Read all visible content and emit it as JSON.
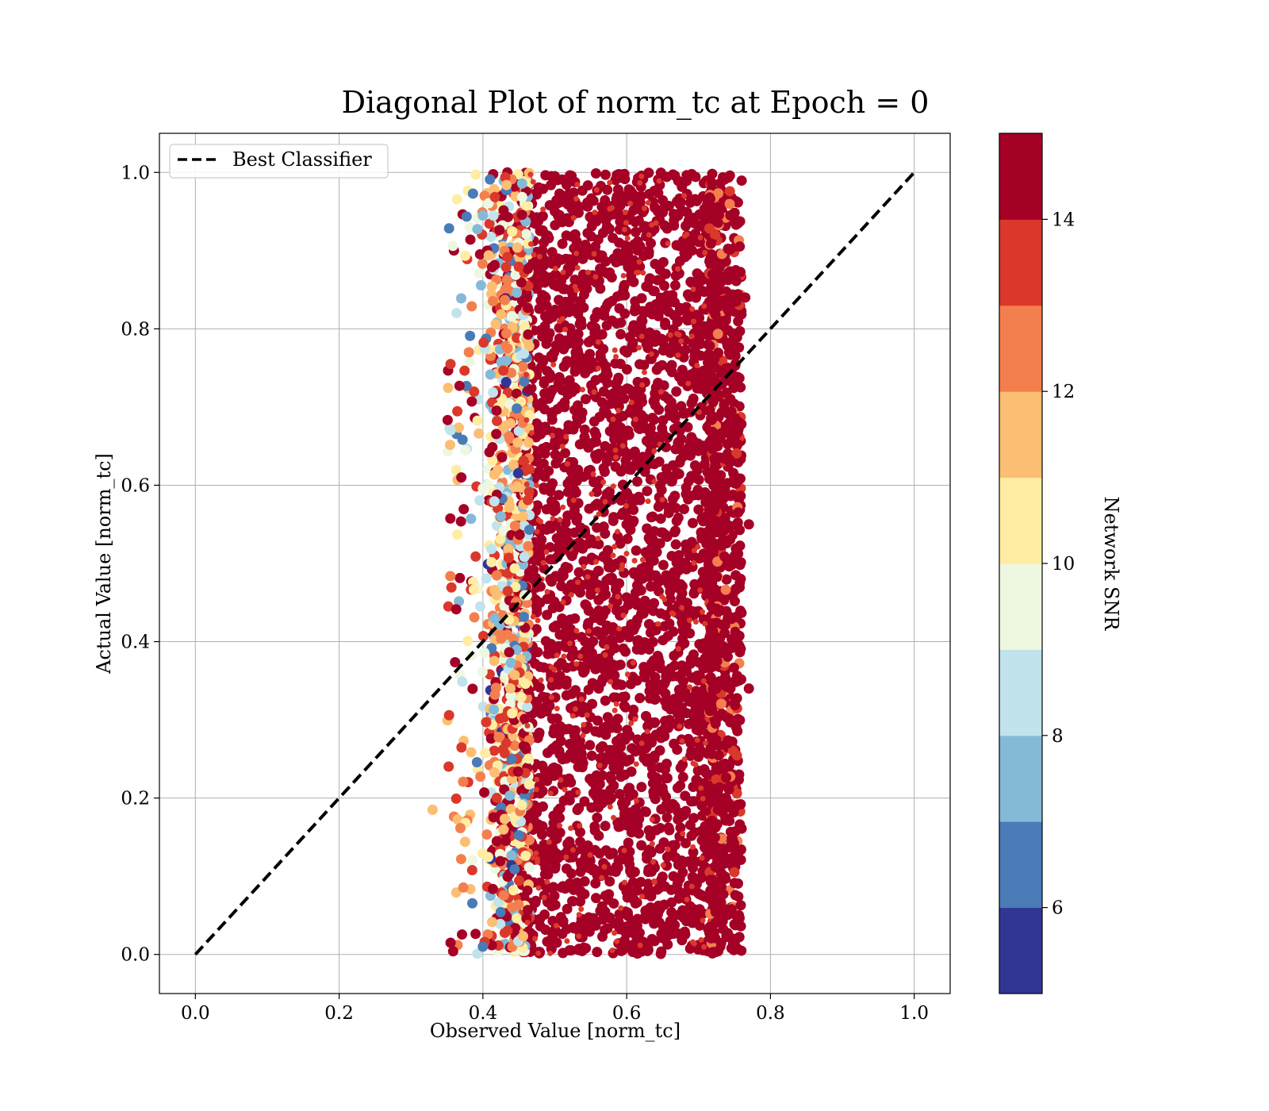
{
  "chart_data": {
    "type": "scatter",
    "title": "Diagonal Plot of norm_tc at Epoch = 0",
    "xlabel": "Observed Value [norm_tc]",
    "ylabel": "Actual Value [norm_tc]",
    "xlim": [
      -0.05,
      1.05
    ],
    "ylim": [
      -0.05,
      1.05
    ],
    "xticks": [
      "0.0",
      "0.2",
      "0.4",
      "0.6",
      "0.8",
      "1.0"
    ],
    "yticks": [
      "0.0",
      "0.2",
      "0.4",
      "0.6",
      "0.8",
      "1.0"
    ],
    "grid": true,
    "legend": {
      "placement": "upper-left",
      "entries": [
        "Best Classifier"
      ]
    },
    "reference_line": {
      "name": "Best Classifier",
      "x": [
        0.0,
        1.0
      ],
      "y": [
        0.0,
        1.0
      ],
      "style": "dashed",
      "color": "#000000"
    },
    "scatter": {
      "x_core_range": [
        0.45,
        0.72
      ],
      "x_full_range": [
        0.33,
        0.77
      ],
      "y_range": [
        0.0,
        1.0
      ],
      "dominant_color": "#a50026",
      "description_points": [
        {
          "x": 0.355,
          "y": 0.015,
          "snr": 15
        },
        {
          "x": 0.33,
          "y": 0.185,
          "snr": 11.5
        },
        {
          "x": 0.355,
          "y": 0.755,
          "snr": 13
        },
        {
          "x": 0.37,
          "y": 0.61,
          "snr": 15
        },
        {
          "x": 0.4,
          "y": 0.01,
          "snr": 6
        },
        {
          "x": 0.4,
          "y": 0.945,
          "snr": 7.5
        },
        {
          "x": 0.765,
          "y": 0.84,
          "snr": 15
        },
        {
          "x": 0.77,
          "y": 0.55,
          "snr": 15
        },
        {
          "x": 0.77,
          "y": 0.34,
          "snr": 15
        },
        {
          "x": 0.755,
          "y": 0.935,
          "snr": 15
        }
      ]
    },
    "colorbar": {
      "label": "Network SNR",
      "range": [
        5,
        15
      ],
      "ticks": [
        "6",
        "8",
        "10",
        "12",
        "14"
      ],
      "tick_values": [
        6,
        8,
        10,
        12,
        14
      ],
      "bins": [
        {
          "from": 5,
          "to": 6,
          "color": "#313695"
        },
        {
          "from": 6,
          "to": 7,
          "color": "#4a7bb7"
        },
        {
          "from": 7,
          "to": 8,
          "color": "#84b9d8"
        },
        {
          "from": 8,
          "to": 9,
          "color": "#c0e3ec"
        },
        {
          "from": 9,
          "to": 10,
          "color": "#eef7e0"
        },
        {
          "from": 10,
          "to": 11,
          "color": "#feeda2"
        },
        {
          "from": 11,
          "to": 12,
          "color": "#fcbe72"
        },
        {
          "from": 12,
          "to": 13,
          "color": "#f47f4e"
        },
        {
          "from": 13,
          "to": 14,
          "color": "#da382b"
        },
        {
          "from": 14,
          "to": 15,
          "color": "#a50026"
        }
      ]
    }
  }
}
